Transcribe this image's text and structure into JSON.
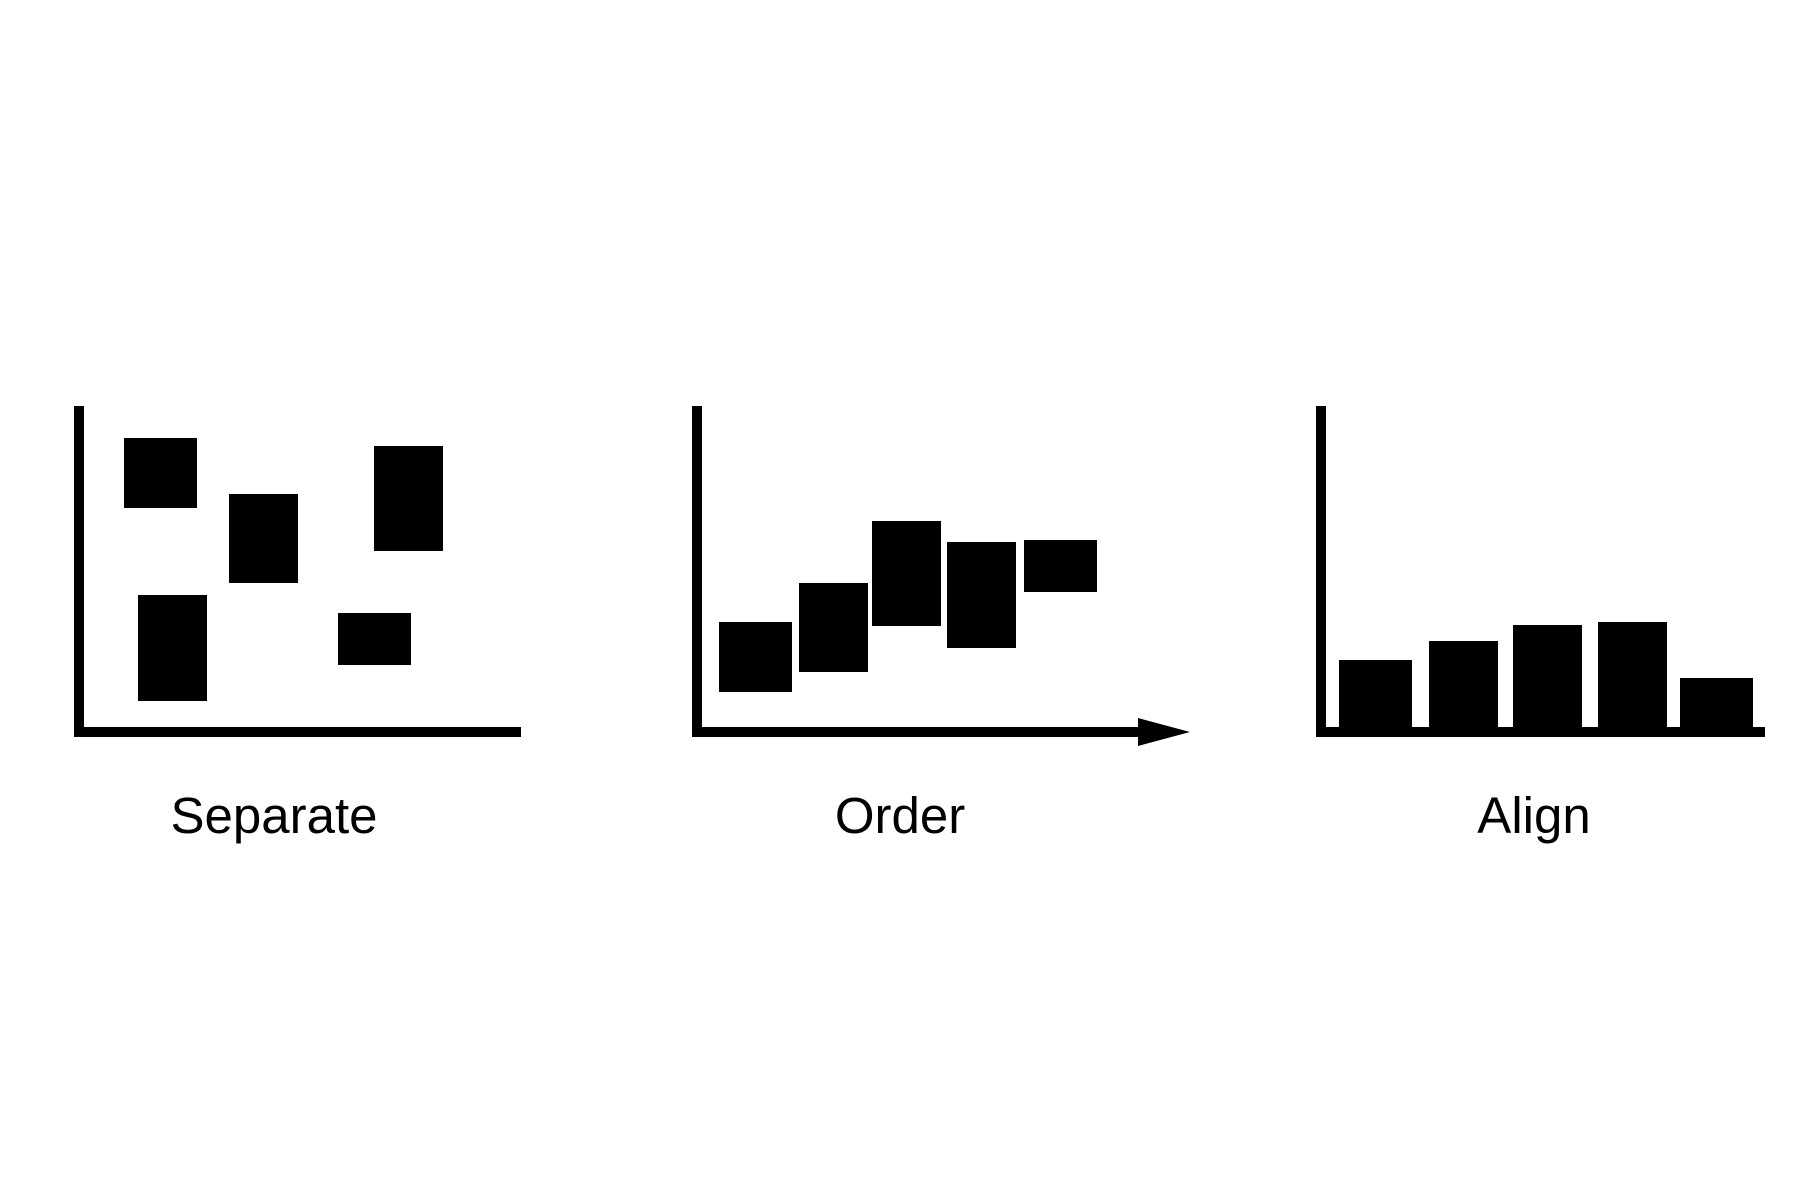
{
  "colors": {
    "ink": "#000000",
    "background": "#ffffff"
  },
  "panels": [
    {
      "caption": "Separate",
      "axis_x_arrow": false,
      "layout": "scattered",
      "block_count": 5
    },
    {
      "caption": "Order",
      "axis_x_arrow": true,
      "layout": "ascending-then-descending",
      "block_count": 5
    },
    {
      "caption": "Align",
      "axis_x_arrow": false,
      "layout": "common-baseline",
      "block_count": 5
    }
  ]
}
